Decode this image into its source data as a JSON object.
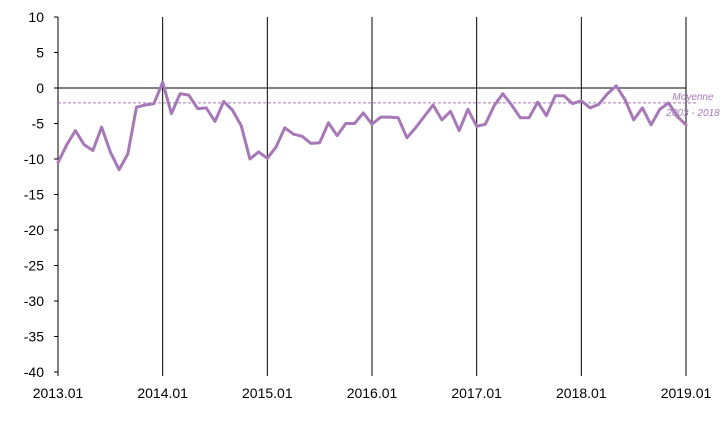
{
  "chart_data": {
    "type": "line",
    "title": "",
    "xlabel": "",
    "ylabel": "",
    "ylim": [
      -40,
      10
    ],
    "y_ticks": [
      "10",
      "5",
      "0",
      "-5",
      "-10",
      "-15",
      "-20",
      "-25",
      "-30",
      "-35",
      "-40"
    ],
    "y_tick_values": [
      10,
      5,
      0,
      -5,
      -10,
      -15,
      -20,
      -25,
      -30,
      -35,
      -40
    ],
    "x_ticks": [
      "2013.01",
      "2014.01",
      "2015.01",
      "2016.01",
      "2017.01",
      "2018.01",
      "2019.01"
    ],
    "grid": "vertical lines at each year",
    "series": [
      {
        "color": "#a678b8",
        "x_start": "2013.01",
        "frequency": "monthly",
        "values": [
          -10.5,
          -8,
          -6,
          -8,
          -8.8,
          -5.5,
          -9,
          -11.5,
          -9.3,
          -2.7,
          -2.4,
          -2.2,
          0.8,
          -3.6,
          -0.8,
          -1,
          -2.9,
          -2.8,
          -4.7,
          -1.9,
          -3.1,
          -5.3,
          -10,
          -9,
          -9.9,
          -8.3,
          -5.6,
          -6.5,
          -6.8,
          -7.8,
          -7.7,
          -4.9,
          -6.7,
          -5,
          -5,
          -3.5,
          -5.1,
          -4.1,
          -4.1,
          -4.2,
          -7,
          -5.6,
          -4,
          -2.4,
          -4.5,
          -3.3,
          -6,
          -3,
          -5.4,
          -5.1,
          -2.5,
          -0.8,
          -2.4,
          -4.2,
          -4.2,
          -2,
          -3.9,
          -1.1,
          -1.1,
          -2.2,
          -1.8,
          -2.8,
          -2.3,
          -0.8,
          0.3,
          -1.6,
          -4.5,
          -2.8,
          -5.2,
          -3,
          -2.1,
          -4,
          -5.2
        ]
      }
    ],
    "reference_line": {
      "value": -2.1,
      "color": "#a678b8",
      "label_line1": "Moyenne",
      "label_line2": "2003 - 2018"
    },
    "zero_line_color": "#000000"
  }
}
